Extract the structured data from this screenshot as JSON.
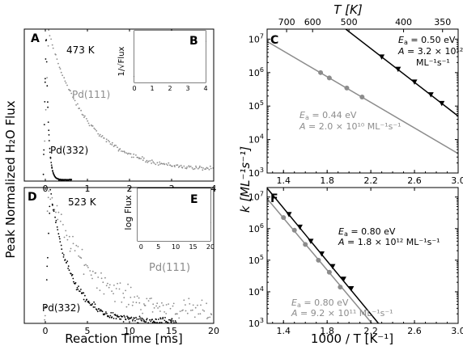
{
  "figure": {
    "shared_ylabel_left": "Peak Normalized H₂O Flux",
    "shared_xlabel_left": "Reaction Time [ms]",
    "shared_ylabel_right": "k [ML⁻¹s⁻¹]",
    "shared_xlabel_right": "1000 / T [K⁻¹]",
    "top_axis_label": "T [K]",
    "colors": {
      "black": "#000000",
      "gray": "#8c8c8c"
    }
  },
  "chart_data": [
    {
      "panel": "A",
      "type": "scatter",
      "title": "",
      "annotation": "473 K",
      "xlim": [
        -0.5,
        4
      ],
      "ylim": [
        0,
        1.02
      ],
      "xticks": [
        "0",
        "1",
        "2",
        "3",
        "4"
      ],
      "series": [
        {
          "name": "Pd(111)",
          "color": "#8c8c8c",
          "model": "decay",
          "x0": -0.02,
          "x1": 4.0,
          "n": 150,
          "rise": 0.08,
          "tau": 0.9,
          "floor": 0.07,
          "noise": 0.02
        },
        {
          "name": "Pd(332)",
          "color": "#000000",
          "model": "decay",
          "x0": -0.05,
          "x1": 0.62,
          "n": 80,
          "rise": 0.02,
          "tau": 0.055,
          "floor": 0.008,
          "noise": 0.006
        }
      ]
    },
    {
      "panel": "B",
      "type": "scatter",
      "title": "",
      "ylabel": "1/√Flux",
      "xlim": [
        0,
        4
      ],
      "ylim": [
        0,
        11
      ],
      "xticks": [
        "0",
        "1",
        "2",
        "3",
        "4"
      ],
      "series": [
        {
          "name": "Pd(111)",
          "color": "#8c8c8c",
          "model": "linear",
          "x0": 0.15,
          "x1": 4.0,
          "n": 75,
          "a": 1.1,
          "b": 1.95,
          "noise": 0.25
        },
        {
          "name": "Pd(332)",
          "color": "#000000",
          "model": "steep",
          "x0": 0.0,
          "x1": 0.28,
          "n": 28,
          "a": 1.0,
          "b": 38,
          "noise": 0.2
        }
      ]
    },
    {
      "panel": "C",
      "type": "line",
      "title": "",
      "xlim": [
        1.25,
        3.0
      ],
      "ylim_log10": [
        3,
        7.3
      ],
      "xticks": [
        "1.4",
        "1.8",
        "2.2",
        "2.6",
        "3.0"
      ],
      "yticks_exp": [
        3,
        4,
        5,
        6,
        7
      ],
      "top_ticks_T": [
        "700",
        "600",
        "500",
        "400",
        "350"
      ],
      "series": [
        {
          "name": "",
          "color": "#000000",
          "marker": "triangle-down",
          "fit": [
            [
              1.95,
              7.35
            ],
            [
              3.0,
              4.7
            ]
          ],
          "points": [
            [
              2.3,
              6.47
            ],
            [
              2.45,
              6.1
            ],
            [
              2.6,
              5.72
            ],
            [
              2.75,
              5.34
            ],
            [
              2.85,
              5.08
            ]
          ]
        },
        {
          "name": "",
          "color": "#8c8c8c",
          "marker": "circle",
          "fit": [
            [
              1.25,
              6.93
            ],
            [
              3.0,
              3.58
            ]
          ],
          "points": [
            [
              1.74,
              6.0
            ],
            [
              1.82,
              5.84
            ],
            [
              1.98,
              5.54
            ],
            [
              2.12,
              5.27
            ]
          ]
        }
      ],
      "fit_labels": [
        {
          "Ea": "0.50 eV",
          "A": "3.2 × 10¹²",
          "units": "ML⁻¹s⁻¹",
          "color": "#000000"
        },
        {
          "Ea": "0.44 eV",
          "A": "2.0 × 10¹⁰ ML⁻¹s⁻¹",
          "color": "#8c8c8c"
        }
      ]
    },
    {
      "panel": "D",
      "type": "scatter",
      "title": "",
      "annotation": "523 K",
      "xlim": [
        -2.5,
        20
      ],
      "ylim": [
        0,
        1.02
      ],
      "xticks": [
        "0",
        "5",
        "10",
        "15",
        "20"
      ],
      "series": [
        {
          "name": "Pd(111)",
          "color": "#8c8c8c",
          "model": "decay",
          "x0": -0.4,
          "x1": 19.8,
          "n": 140,
          "rise": 0.3,
          "tau": 5.0,
          "floor": 0.06,
          "noise": 0.12
        },
        {
          "name": "Pd(332)",
          "color": "#000000",
          "model": "decay",
          "x0": -0.2,
          "x1": 15.5,
          "n": 190,
          "rise": 0.6,
          "tau": 2.4,
          "floor": 0.01,
          "noise": 0.04
        }
      ]
    },
    {
      "panel": "E",
      "type": "scatter",
      "title": "",
      "ylabel": "log Flux",
      "xlim": [
        -1,
        20
      ],
      "ylim": [
        -2.6,
        0.1
      ],
      "xticks": [
        "0",
        "5",
        "10",
        "15",
        "20"
      ],
      "series": [
        {
          "name": "Pd(111)",
          "color": "#8c8c8c",
          "model": "loglin",
          "x0": 0.5,
          "x1": 20,
          "n": 90,
          "a": -0.1,
          "b": -0.075,
          "noise": 0.13
        },
        {
          "name": "Pd(332)",
          "color": "#000000",
          "model": "loglin",
          "x0": 0.5,
          "x1": 15.5,
          "n": 130,
          "a": -0.1,
          "b": -0.155,
          "noise": 0.12
        }
      ]
    },
    {
      "panel": "F",
      "type": "line",
      "title": "",
      "xlim": [
        1.25,
        3.0
      ],
      "ylim_log10": [
        3,
        7.3
      ],
      "xticks": [
        "1.4",
        "1.8",
        "2.2",
        "2.6",
        "3.0"
      ],
      "yticks_exp": [
        3,
        4,
        5,
        6,
        7
      ],
      "series": [
        {
          "name": "",
          "color": "#000000",
          "marker": "triangle-down",
          "fit": [
            [
              1.25,
              7.28
            ],
            [
              2.27,
              3.0
            ]
          ],
          "points": [
            [
              1.45,
              6.45
            ],
            [
              1.55,
              6.05
            ],
            [
              1.65,
              5.6
            ],
            [
              1.75,
              5.2
            ],
            [
              1.85,
              4.8
            ],
            [
              1.95,
              4.4
            ],
            [
              2.02,
              4.1
            ]
          ]
        },
        {
          "name": "",
          "color": "#8c8c8c",
          "marker": "circle",
          "fit": [
            [
              1.25,
              6.95
            ],
            [
              2.21,
              3.0
            ]
          ],
          "points": [
            [
              1.4,
              6.35
            ],
            [
              1.5,
              5.95
            ],
            [
              1.6,
              5.5
            ],
            [
              1.72,
              5.0
            ],
            [
              1.82,
              4.62
            ],
            [
              1.92,
              4.15
            ]
          ]
        }
      ],
      "fit_labels": [
        {
          "Ea": "0.80 eV",
          "A": "1.8 × 10¹² ML⁻¹s⁻¹",
          "color": "#000000"
        },
        {
          "Ea": "0.80 eV",
          "A": "9.2 × 10¹¹ ML⁻¹s⁻¹",
          "color": "#8c8c8c"
        }
      ]
    }
  ]
}
